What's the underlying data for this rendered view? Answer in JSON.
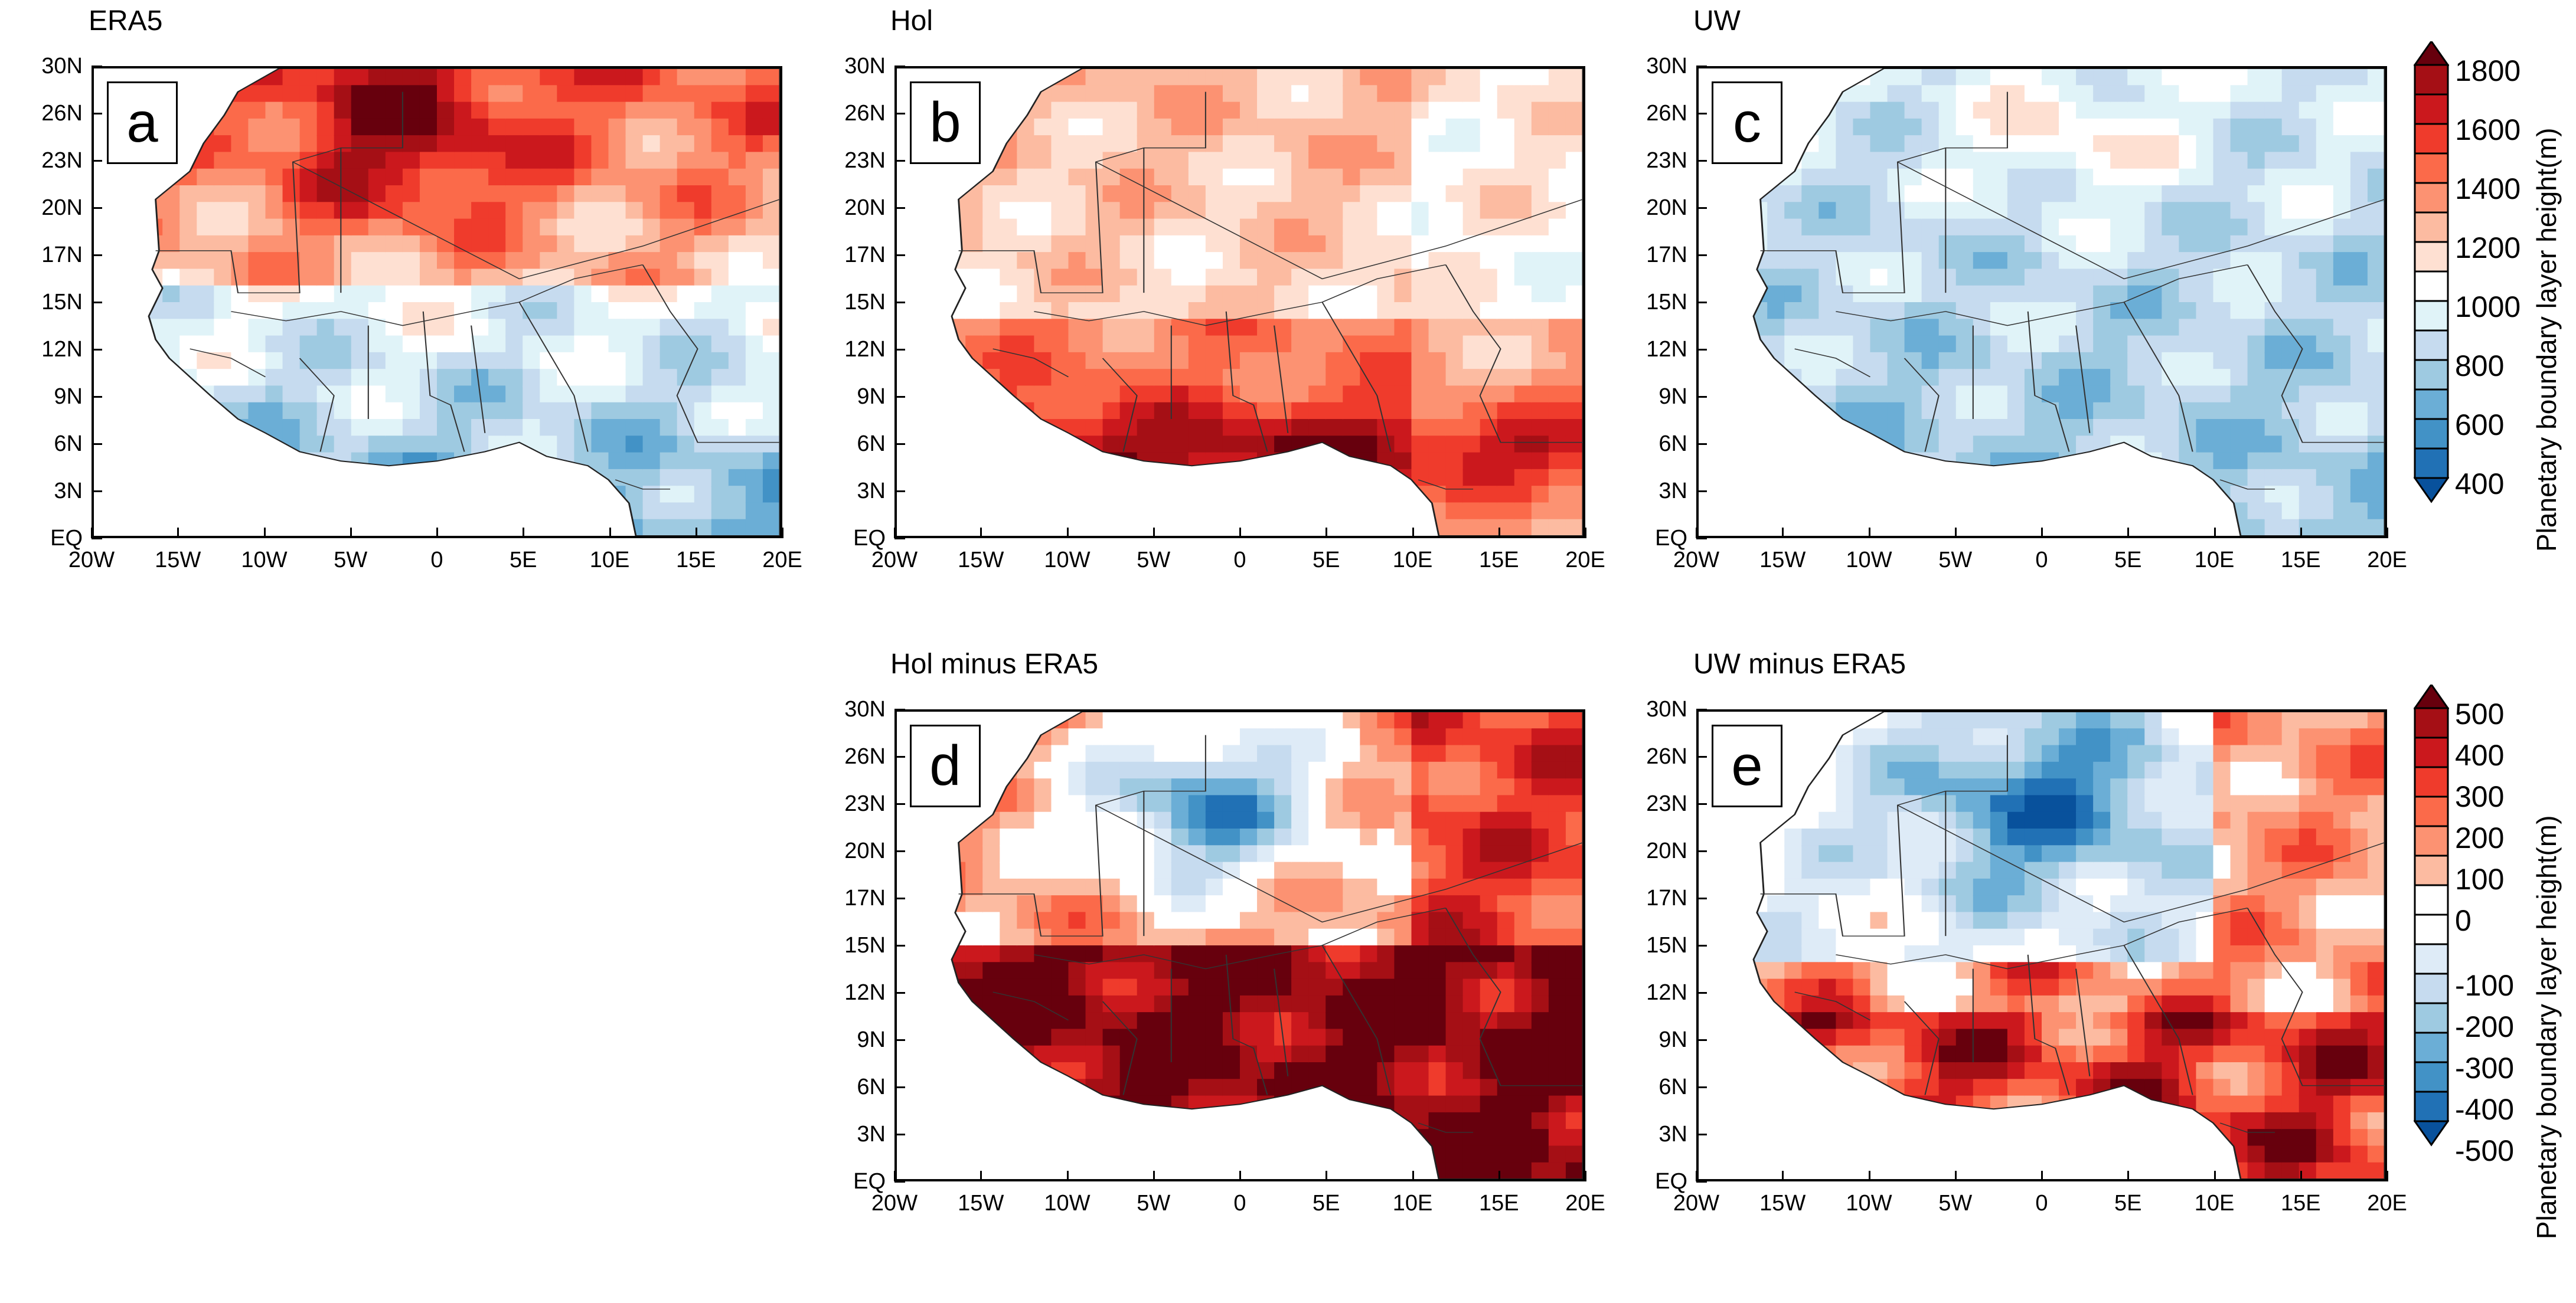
{
  "figure": {
    "panels": [
      {
        "id": "a",
        "title": "ERA5",
        "letter": "a",
        "kind": "abs",
        "pattern": "era5"
      },
      {
        "id": "b",
        "title": "Hol",
        "letter": "b",
        "kind": "abs",
        "pattern": "hol"
      },
      {
        "id": "c",
        "title": "UW",
        "letter": "c",
        "kind": "abs",
        "pattern": "uw"
      },
      {
        "id": "d",
        "title": "Hol minus ERA5",
        "letter": "d",
        "kind": "diff",
        "pattern": "hol_diff"
      },
      {
        "id": "e",
        "title": "UW minus ERA5",
        "letter": "e",
        "kind": "diff",
        "pattern": "uw_diff"
      }
    ],
    "lat_ticks": [
      "30N",
      "26N",
      "23N",
      "20N",
      "17N",
      "15N",
      "12N",
      "9N",
      "6N",
      "3N",
      "EQ"
    ],
    "lon_ticks": [
      "20W",
      "15W",
      "10W",
      "5W",
      "0",
      "5E",
      "10E",
      "15E",
      "20E"
    ],
    "colorbar_abs": {
      "title": "Planetary boundary layer height(m)",
      "labels": [
        "1800",
        "1600",
        "1400",
        "1200",
        "1000",
        "800",
        "600",
        "400"
      ],
      "colors": [
        "#67000d",
        "#a50f15",
        "#cb181d",
        "#ef3b2c",
        "#fb6a4a",
        "#fc9272",
        "#fcbba1",
        "#fee0d2",
        "#ffffff",
        "#e0f3f8",
        "#c6dbef",
        "#9ecae1",
        "#6baed6",
        "#4292c6",
        "#2171b5",
        "#08519c"
      ]
    },
    "colorbar_diff": {
      "title": "Planetary boundary layer height(m)",
      "labels": [
        "500",
        "400",
        "300",
        "200",
        "100",
        "0",
        "-100",
        "-200",
        "-300",
        "-400",
        "-500"
      ],
      "colors": [
        "#67000d",
        "#a50f15",
        "#cb181d",
        "#ef3b2c",
        "#fb6a4a",
        "#fc9272",
        "#fcbba1",
        "#ffffff",
        "#ffffff",
        "#deebf7",
        "#c6dbef",
        "#9ecae1",
        "#6baed6",
        "#4292c6",
        "#2171b5",
        "#08519c"
      ]
    }
  }
}
